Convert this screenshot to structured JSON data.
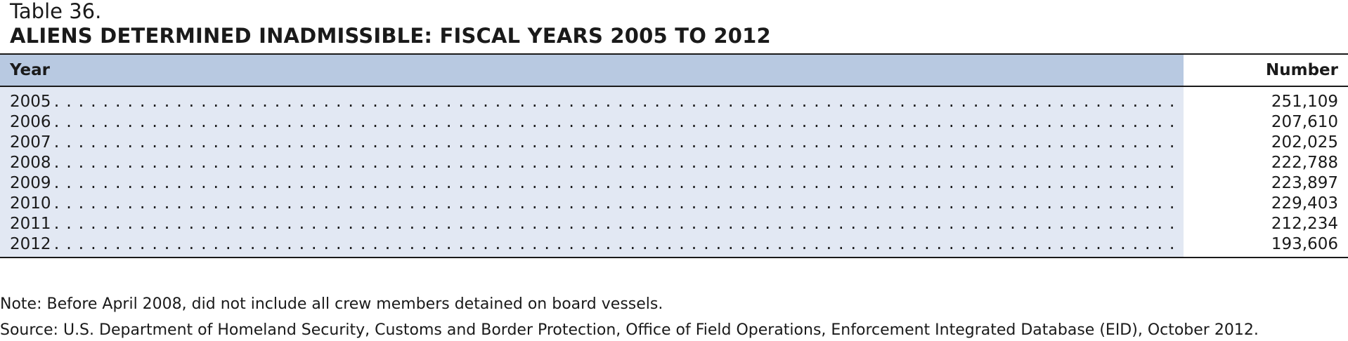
{
  "table": {
    "number": "Table 36.",
    "title": "ALIENS DETERMINED INADMISSIBLE: FISCAL YEARS 2005 TO 2012",
    "columns": [
      "Year",
      "Number"
    ],
    "rows": [
      {
        "year": "2005",
        "number": "251,109"
      },
      {
        "year": "2006",
        "number": "207,610"
      },
      {
        "year": "2007",
        "number": "202,025"
      },
      {
        "year": "2008",
        "number": "222,788"
      },
      {
        "year": "2009",
        "number": "223,897"
      },
      {
        "year": "2010",
        "number": "229,403"
      },
      {
        "year": "2011",
        "number": "212,234"
      },
      {
        "year": "2012",
        "number": "193,606"
      }
    ]
  },
  "footnotes": {
    "note": "Note: Before April 2008, did not include all crew members detained on board vessels.",
    "source": "Source: U.S. Department of Homeland Security, Customs and Border Protection, Office of Field Operations, Enforcement Integrated Database (EID), October 2012."
  },
  "colors": {
    "header_fill": "#b8c9e1",
    "row_fill": "#e2e8f3",
    "rule": "#1a1a1a"
  }
}
